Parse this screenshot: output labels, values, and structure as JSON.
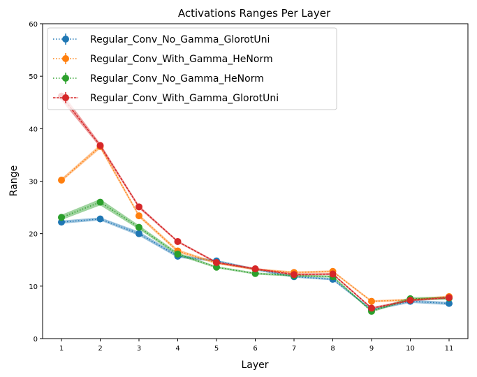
{
  "chart_data": {
    "type": "line",
    "title": "Activations Ranges Per Layer",
    "xlabel": "Layer",
    "ylabel": "Range",
    "categories": [
      1,
      2,
      3,
      4,
      5,
      6,
      7,
      8,
      9,
      10,
      11
    ],
    "ylim": [
      0,
      60
    ],
    "yticks": [
      0,
      10,
      20,
      30,
      40,
      50,
      60
    ],
    "legend_position": "top-left",
    "series": [
      {
        "name": "Regular_Conv_No_Gamma_GlorotUni",
        "color": "#1f77b4",
        "linestyle": "dotted",
        "values": [
          22.2,
          22.8,
          20.0,
          15.7,
          14.8,
          13.2,
          11.8,
          11.3,
          5.5,
          7.1,
          6.7
        ],
        "band": [
          0.3,
          0.3,
          0.4,
          0.3,
          0.2,
          0.2,
          0.2,
          0.2,
          0.2,
          0.3,
          0.3
        ]
      },
      {
        "name": "Regular_Conv_With_Gamma_HeNorm",
        "color": "#ff7f0e",
        "linestyle": "dotted",
        "values": [
          30.2,
          36.6,
          23.4,
          16.7,
          14.4,
          13.2,
          12.6,
          12.8,
          7.1,
          7.4,
          8.0
        ],
        "band": [
          0.3,
          0.4,
          0.3,
          0.3,
          0.2,
          0.2,
          0.2,
          0.2,
          0.2,
          0.2,
          0.2
        ]
      },
      {
        "name": "Regular_Conv_No_Gamma_HeNorm",
        "color": "#2ca02c",
        "linestyle": "dotted",
        "values": [
          23.1,
          26.0,
          21.2,
          16.1,
          13.6,
          12.4,
          12.0,
          11.8,
          5.2,
          7.6,
          7.7
        ],
        "band": [
          0.5,
          0.6,
          0.4,
          0.3,
          0.2,
          0.2,
          0.2,
          0.2,
          0.2,
          0.3,
          0.3
        ]
      },
      {
        "name": "Regular_Conv_With_Gamma_GlorotUni",
        "color": "#d62728",
        "linestyle": "dashed",
        "values": [
          46.2,
          36.8,
          25.1,
          18.5,
          14.5,
          13.3,
          12.2,
          12.3,
          5.8,
          7.3,
          7.8
        ],
        "band": [
          0.8,
          0.4,
          0.3,
          0.2,
          0.2,
          0.2,
          0.2,
          0.2,
          0.2,
          0.2,
          0.2
        ]
      }
    ]
  }
}
